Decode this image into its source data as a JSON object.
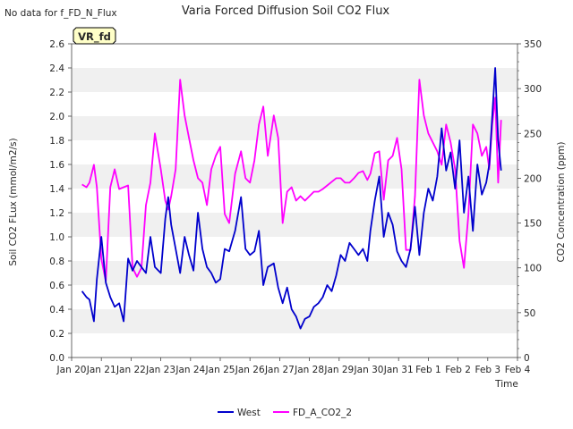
{
  "chart_data": {
    "type": "line",
    "title": "Varia Forced Diffusion Soil CO2 Flux",
    "nodata_note": "No data for f_FD_N_Flux",
    "badge": "VR_fd",
    "xlabel": "Time",
    "ylabel": "Soil CO2 FLux (mmol/m2/s)",
    "y2label": "CO2 Concentration (ppm)",
    "x_ticks": [
      "Jan 20",
      "Jan 21",
      "Jan 22",
      "Jan 23",
      "Jan 24",
      "Jan 25",
      "Jan 26",
      "Jan 27",
      "Jan 28",
      "Jan 29",
      "Jan 30",
      "Jan 31",
      "Feb 1",
      "Feb 2",
      "Feb 3",
      "Feb 4"
    ],
    "xlim": [
      0,
      15
    ],
    "ylim": [
      0,
      2.6
    ],
    "y_ticks": [
      "0.0",
      "0.2",
      "0.4",
      "0.6",
      "0.8",
      "1.0",
      "1.2",
      "1.4",
      "1.6",
      "1.8",
      "2.0",
      "2.2",
      "2.4",
      "2.6"
    ],
    "y2lim": [
      0,
      350
    ],
    "y2_ticks": [
      "0",
      "50",
      "100",
      "150",
      "200",
      "250",
      "300",
      "350"
    ],
    "grid": "horizontal bands",
    "legend_position": "bottom-center",
    "series": [
      {
        "name": "West",
        "axis": "left",
        "color": "#0000cc",
        "x": [
          0.35,
          0.5,
          0.6,
          0.75,
          0.85,
          1.0,
          1.15,
          1.3,
          1.45,
          1.6,
          1.75,
          1.9,
          2.05,
          2.2,
          2.35,
          2.5,
          2.65,
          2.8,
          3.0,
          3.15,
          3.25,
          3.35,
          3.5,
          3.65,
          3.8,
          3.95,
          4.1,
          4.25,
          4.4,
          4.55,
          4.7,
          4.85,
          5.0,
          5.15,
          5.3,
          5.5,
          5.7,
          5.85,
          6.0,
          6.15,
          6.3,
          6.45,
          6.6,
          6.8,
          6.95,
          7.1,
          7.25,
          7.4,
          7.55,
          7.7,
          7.85,
          8.0,
          8.15,
          8.3,
          8.45,
          8.6,
          8.75,
          8.9,
          9.05,
          9.2,
          9.35,
          9.5,
          9.65,
          9.8,
          9.95,
          10.05,
          10.2,
          10.35,
          10.5,
          10.65,
          10.8,
          10.95,
          11.1,
          11.25,
          11.4,
          11.55,
          11.7,
          11.85,
          12.0,
          12.15,
          12.3,
          12.45,
          12.6,
          12.75,
          12.9,
          13.05,
          13.2,
          13.35,
          13.5,
          13.65,
          13.8,
          13.95,
          14.05,
          14.15,
          14.25,
          14.35,
          14.45
        ],
        "y": [
          0.55,
          0.5,
          0.48,
          0.3,
          0.65,
          1.0,
          0.62,
          0.5,
          0.42,
          0.45,
          0.3,
          0.82,
          0.72,
          0.8,
          0.75,
          0.7,
          1.0,
          0.75,
          0.7,
          1.15,
          1.33,
          1.1,
          0.9,
          0.7,
          1.0,
          0.85,
          0.72,
          1.2,
          0.9,
          0.75,
          0.7,
          0.62,
          0.65,
          0.9,
          0.88,
          1.05,
          1.33,
          0.9,
          0.85,
          0.88,
          1.05,
          0.6,
          0.75,
          0.78,
          0.58,
          0.45,
          0.58,
          0.4,
          0.34,
          0.24,
          0.32,
          0.34,
          0.42,
          0.45,
          0.5,
          0.6,
          0.55,
          0.68,
          0.85,
          0.8,
          0.95,
          0.9,
          0.85,
          0.9,
          0.8,
          1.05,
          1.3,
          1.5,
          1.0,
          1.2,
          1.1,
          0.88,
          0.8,
          0.75,
          0.9,
          1.25,
          0.85,
          1.2,
          1.4,
          1.3,
          1.5,
          1.9,
          1.55,
          1.7,
          1.4,
          1.8,
          1.2,
          1.5,
          1.05,
          1.6,
          1.35,
          1.45,
          1.6,
          2.0,
          2.4,
          1.8,
          1.55
        ]
      },
      {
        "name": "FD_A_CO2_2",
        "axis": "right",
        "color": "#ff00ff",
        "x": [
          0.35,
          0.5,
          0.6,
          0.75,
          0.85,
          1.0,
          1.15,
          1.3,
          1.45,
          1.6,
          1.75,
          1.9,
          2.05,
          2.2,
          2.35,
          2.5,
          2.65,
          2.8,
          3.0,
          3.15,
          3.25,
          3.35,
          3.5,
          3.65,
          3.8,
          3.95,
          4.1,
          4.25,
          4.4,
          4.55,
          4.7,
          4.85,
          5.0,
          5.15,
          5.3,
          5.5,
          5.7,
          5.85,
          6.0,
          6.15,
          6.3,
          6.45,
          6.6,
          6.8,
          6.95,
          7.1,
          7.25,
          7.4,
          7.55,
          7.7,
          7.85,
          8.0,
          8.15,
          8.3,
          8.45,
          8.6,
          8.75,
          8.9,
          9.05,
          9.2,
          9.35,
          9.5,
          9.65,
          9.8,
          9.95,
          10.05,
          10.2,
          10.35,
          10.5,
          10.65,
          10.8,
          10.95,
          11.1,
          11.25,
          11.4,
          11.55,
          11.7,
          11.85,
          12.0,
          12.15,
          12.3,
          12.45,
          12.6,
          12.75,
          12.9,
          13.05,
          13.2,
          13.35,
          13.5,
          13.65,
          13.8,
          13.95,
          14.05,
          14.15,
          14.25,
          14.35,
          14.45
        ],
        "y": [
          193,
          190,
          195,
          215,
          190,
          110,
          85,
          190,
          210,
          188,
          190,
          192,
          100,
          90,
          100,
          170,
          195,
          250,
          210,
          175,
          165,
          180,
          210,
          310,
          270,
          245,
          220,
          200,
          195,
          170,
          210,
          225,
          235,
          160,
          150,
          205,
          230,
          200,
          195,
          220,
          260,
          280,
          225,
          270,
          245,
          150,
          185,
          190,
          175,
          180,
          175,
          180,
          185,
          185,
          188,
          192,
          196,
          200,
          200,
          195,
          195,
          200,
          206,
          208,
          198,
          205,
          228,
          230,
          176,
          220,
          225,
          245,
          210,
          120,
          120,
          180,
          310,
          270,
          250,
          240,
          230,
          215,
          260,
          240,
          210,
          130,
          100,
          160,
          260,
          250,
          225,
          235,
          210,
          260,
          290,
          195,
          265
        ]
      }
    ]
  }
}
